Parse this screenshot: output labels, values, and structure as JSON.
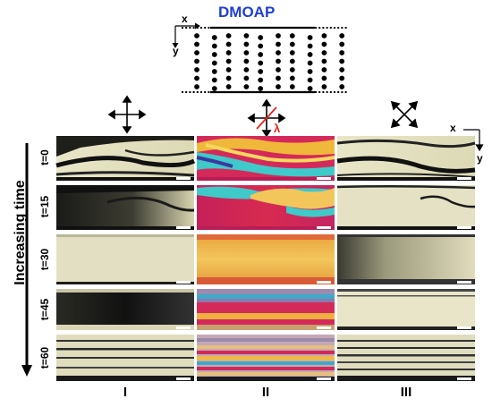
{
  "header": {
    "title": "DMOAP",
    "title_color": "#1f3fd1",
    "axis_x": "x",
    "axis_y": "y"
  },
  "polarizer_icons": [
    "crossed-polarizers-icon",
    "crossed-polarizers-with-waveplate-icon",
    "diagonal-polarizers-icon"
  ],
  "waveplate_label": "λ",
  "waveplate_color": "#e8221b",
  "side_label": "Increasing time",
  "corner_axes": {
    "x": "x",
    "y": "y"
  },
  "rows": [
    "t=0",
    "t=15",
    "t=30",
    "t=45",
    "t=60"
  ],
  "columns": [
    "I",
    "II",
    "III"
  ]
}
